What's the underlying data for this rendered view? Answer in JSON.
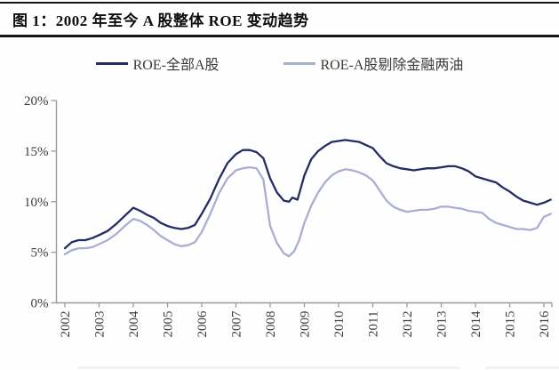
{
  "header": {
    "title": "图 1：2002 年至今 A 股整体 ROE 变动趋势"
  },
  "colors": {
    "series_all_a": "#232c63",
    "series_ex_fin_oil": "#a9aed2",
    "axis": "#9a9a9a",
    "axis_text": "#3d3d3d",
    "rule": "#161616",
    "footer_line": "#ebebf0"
  },
  "chart_data": {
    "type": "line",
    "title": "图 1：2002 年至今 A 股整体 ROE 变动趋势",
    "xlabel": "",
    "ylabel": "",
    "grid": false,
    "legend_position": "top",
    "xlim": [
      2001.75,
      2016.45
    ],
    "ylim": [
      0,
      20
    ],
    "y_ticks": [
      "0%",
      "5%",
      "10%",
      "15%",
      "20%"
    ],
    "y_tick_values": [
      0,
      5,
      10,
      15,
      20
    ],
    "x_ticks": [
      "2002",
      "2003",
      "2004",
      "2005",
      "2006",
      "2007",
      "2008",
      "2009",
      "2010",
      "2011",
      "2012",
      "2013",
      "2014",
      "2015",
      "2016"
    ],
    "series": [
      {
        "name": "ROE-全部A股",
        "color": "#232c63",
        "points": [
          [
            2002.0,
            5.4
          ],
          [
            2002.2,
            6.0
          ],
          [
            2002.4,
            6.2
          ],
          [
            2002.6,
            6.2
          ],
          [
            2002.8,
            6.4
          ],
          [
            2003.0,
            6.7
          ],
          [
            2003.25,
            7.1
          ],
          [
            2003.5,
            7.8
          ],
          [
            2003.75,
            8.6
          ],
          [
            2004.0,
            9.4
          ],
          [
            2004.2,
            9.1
          ],
          [
            2004.4,
            8.7
          ],
          [
            2004.6,
            8.4
          ],
          [
            2004.8,
            7.9
          ],
          [
            2005.0,
            7.6
          ],
          [
            2005.2,
            7.4
          ],
          [
            2005.4,
            7.3
          ],
          [
            2005.6,
            7.4
          ],
          [
            2005.8,
            7.7
          ],
          [
            2006.0,
            8.8
          ],
          [
            2006.25,
            10.3
          ],
          [
            2006.5,
            12.2
          ],
          [
            2006.75,
            13.8
          ],
          [
            2007.0,
            14.7
          ],
          [
            2007.2,
            15.1
          ],
          [
            2007.4,
            15.1
          ],
          [
            2007.6,
            14.9
          ],
          [
            2007.8,
            14.3
          ],
          [
            2008.0,
            12.3
          ],
          [
            2008.2,
            10.9
          ],
          [
            2008.4,
            10.1
          ],
          [
            2008.55,
            10.0
          ],
          [
            2008.65,
            10.4
          ],
          [
            2008.8,
            10.2
          ],
          [
            2009.0,
            12.6
          ],
          [
            2009.2,
            14.2
          ],
          [
            2009.4,
            15.0
          ],
          [
            2009.6,
            15.5
          ],
          [
            2009.8,
            15.9
          ],
          [
            2010.0,
            16.0
          ],
          [
            2010.2,
            16.1
          ],
          [
            2010.4,
            16.0
          ],
          [
            2010.6,
            15.9
          ],
          [
            2010.8,
            15.6
          ],
          [
            2011.0,
            15.3
          ],
          [
            2011.2,
            14.5
          ],
          [
            2011.4,
            13.8
          ],
          [
            2011.6,
            13.5
          ],
          [
            2011.8,
            13.3
          ],
          [
            2012.0,
            13.2
          ],
          [
            2012.2,
            13.1
          ],
          [
            2012.4,
            13.2
          ],
          [
            2012.6,
            13.3
          ],
          [
            2012.8,
            13.3
          ],
          [
            2013.0,
            13.4
          ],
          [
            2013.2,
            13.5
          ],
          [
            2013.4,
            13.5
          ],
          [
            2013.6,
            13.3
          ],
          [
            2013.8,
            13.0
          ],
          [
            2014.0,
            12.5
          ],
          [
            2014.2,
            12.3
          ],
          [
            2014.4,
            12.1
          ],
          [
            2014.6,
            11.9
          ],
          [
            2014.8,
            11.4
          ],
          [
            2015.0,
            11.0
          ],
          [
            2015.2,
            10.5
          ],
          [
            2015.4,
            10.1
          ],
          [
            2015.6,
            9.9
          ],
          [
            2015.8,
            9.7
          ],
          [
            2016.0,
            9.9
          ],
          [
            2016.2,
            10.2
          ]
        ]
      },
      {
        "name": "ROE-A股剔除金融两油",
        "color": "#a9aed2",
        "points": [
          [
            2002.0,
            4.8
          ],
          [
            2002.2,
            5.2
          ],
          [
            2002.4,
            5.4
          ],
          [
            2002.6,
            5.4
          ],
          [
            2002.8,
            5.5
          ],
          [
            2003.0,
            5.8
          ],
          [
            2003.25,
            6.2
          ],
          [
            2003.5,
            6.8
          ],
          [
            2003.75,
            7.6
          ],
          [
            2004.0,
            8.3
          ],
          [
            2004.2,
            8.1
          ],
          [
            2004.4,
            7.7
          ],
          [
            2004.6,
            7.2
          ],
          [
            2004.8,
            6.6
          ],
          [
            2005.0,
            6.2
          ],
          [
            2005.2,
            5.8
          ],
          [
            2005.4,
            5.6
          ],
          [
            2005.6,
            5.7
          ],
          [
            2005.8,
            6.0
          ],
          [
            2006.0,
            7.0
          ],
          [
            2006.25,
            8.8
          ],
          [
            2006.5,
            10.8
          ],
          [
            2006.75,
            12.3
          ],
          [
            2007.0,
            13.1
          ],
          [
            2007.2,
            13.3
          ],
          [
            2007.4,
            13.4
          ],
          [
            2007.6,
            13.3
          ],
          [
            2007.8,
            12.2
          ],
          [
            2008.0,
            7.6
          ],
          [
            2008.2,
            5.9
          ],
          [
            2008.4,
            4.9
          ],
          [
            2008.55,
            4.6
          ],
          [
            2008.7,
            5.1
          ],
          [
            2008.85,
            6.2
          ],
          [
            2009.0,
            7.9
          ],
          [
            2009.2,
            9.6
          ],
          [
            2009.4,
            10.9
          ],
          [
            2009.6,
            11.9
          ],
          [
            2009.8,
            12.6
          ],
          [
            2010.0,
            13.0
          ],
          [
            2010.2,
            13.2
          ],
          [
            2010.4,
            13.1
          ],
          [
            2010.6,
            12.9
          ],
          [
            2010.8,
            12.6
          ],
          [
            2011.0,
            12.1
          ],
          [
            2011.2,
            11.1
          ],
          [
            2011.4,
            10.1
          ],
          [
            2011.6,
            9.5
          ],
          [
            2011.8,
            9.2
          ],
          [
            2012.0,
            9.0
          ],
          [
            2012.2,
            9.1
          ],
          [
            2012.4,
            9.2
          ],
          [
            2012.6,
            9.2
          ],
          [
            2012.8,
            9.3
          ],
          [
            2013.0,
            9.5
          ],
          [
            2013.2,
            9.5
          ],
          [
            2013.4,
            9.4
          ],
          [
            2013.6,
            9.3
          ],
          [
            2013.8,
            9.1
          ],
          [
            2014.0,
            9.0
          ],
          [
            2014.2,
            8.9
          ],
          [
            2014.4,
            8.3
          ],
          [
            2014.6,
            7.9
          ],
          [
            2014.8,
            7.7
          ],
          [
            2015.0,
            7.5
          ],
          [
            2015.2,
            7.3
          ],
          [
            2015.4,
            7.3
          ],
          [
            2015.6,
            7.2
          ],
          [
            2015.8,
            7.4
          ],
          [
            2016.0,
            8.5
          ],
          [
            2016.2,
            8.8
          ]
        ]
      }
    ]
  }
}
